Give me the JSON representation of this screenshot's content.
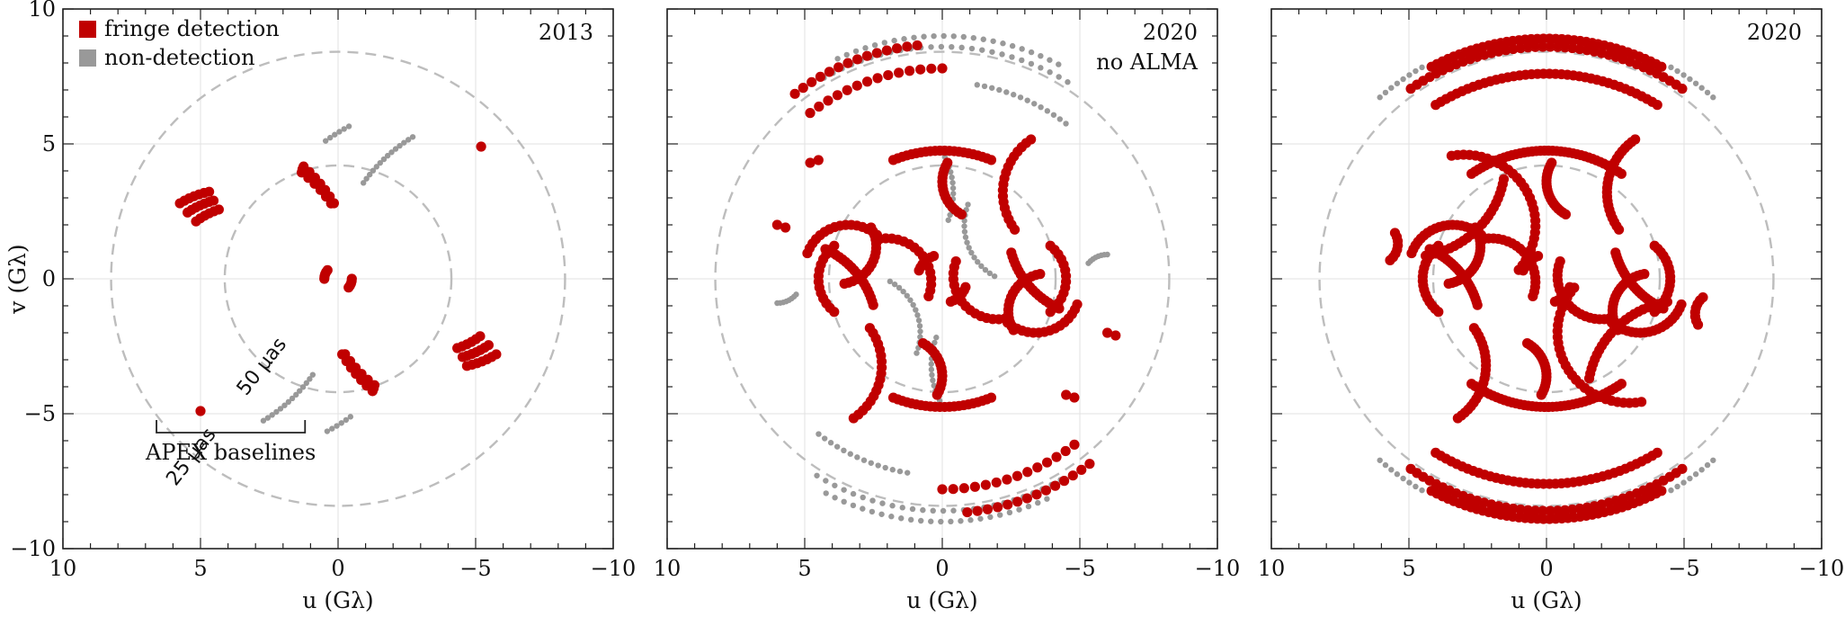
{
  "chart_data": [
    {
      "type": "scatter",
      "panel": "left",
      "year": "2013",
      "subtitle": "",
      "xlabel": "u (Gλ)",
      "ylabel": "v (Gλ)",
      "xlim": [
        10,
        -10
      ],
      "ylim": [
        -10,
        10
      ],
      "xticks": [
        "10",
        "5",
        "0",
        "−5",
        "−10"
      ],
      "yticks": [
        "10",
        "5",
        "0",
        "−5",
        "−10"
      ],
      "grid": true,
      "legend": {
        "position": "top-left",
        "entries": [
          {
            "label": "fringe detection",
            "color": "#c00000"
          },
          {
            "label": "non-detection",
            "color": "#999999"
          }
        ]
      },
      "rings": [
        {
          "radius": 8.25,
          "label": "25 μas"
        },
        {
          "radius": 4.12,
          "label": "50 μas"
        }
      ],
      "annotation": {
        "text": "APEX baselines",
        "u_range": [
          6.6,
          1.2
        ],
        "v": -5.5
      },
      "series": [
        {
          "name": "fringe detection",
          "color": "#c00000",
          "arcs": [
            {
              "cu": 4.0,
              "cv": 0.0,
              "r": 3.3,
              "a0": 58,
              "a1": 78,
              "n": 7
            },
            {
              "cu": 3.75,
              "cv": 0.0,
              "r": 3.0,
              "a0": 55,
              "a1": 75,
              "n": 7
            },
            {
              "cu": 3.5,
              "cv": 0.0,
              "r": 2.7,
              "a0": 52,
              "a1": 72,
              "n": 6
            },
            {
              "cu": -4.0,
              "cv": 0.0,
              "r": 3.3,
              "a0": 238,
              "a1": 258,
              "n": 7
            },
            {
              "cu": -3.75,
              "cv": 0.0,
              "r": 3.0,
              "a0": 235,
              "a1": 255,
              "n": 7
            },
            {
              "cu": -3.5,
              "cv": 0.0,
              "r": 2.7,
              "a0": 232,
              "a1": 252,
              "n": 6
            },
            {
              "cu": 5.0,
              "cv": 0.0,
              "r": 5.6,
              "a0": 132,
              "a1": 150,
              "n": 7
            },
            {
              "cu": 4.7,
              "cv": 0.0,
              "r": 5.3,
              "a0": 130,
              "a1": 148,
              "n": 7
            },
            {
              "cu": 4.4,
              "cv": 0.0,
              "r": 5.0,
              "a0": 128,
              "a1": 146,
              "n": 6
            },
            {
              "cu": -5.0,
              "cv": 0.0,
              "r": 5.6,
              "a0": 312,
              "a1": 330,
              "n": 7
            },
            {
              "cu": -4.7,
              "cv": 0.0,
              "r": 5.3,
              "a0": 310,
              "a1": 328,
              "n": 7
            },
            {
              "cu": -4.4,
              "cv": 0.0,
              "r": 5.0,
              "a0": 308,
              "a1": 326,
              "n": 6
            },
            {
              "cu": 0.0,
              "cv": 0.0,
              "r": 0.5,
              "a0": 0,
              "a1": 40,
              "n": 5
            },
            {
              "cu": 0.0,
              "cv": 0.0,
              "r": 0.5,
              "a0": 180,
              "a1": 220,
              "n": 5
            }
          ],
          "points": [
            [
              5.0,
              -4.9
            ],
            [
              -5.2,
              4.9
            ]
          ]
        },
        {
          "name": "non-detection",
          "color": "#999999",
          "arcs": [
            {
              "cu": 6.0,
              "cv": 0.0,
              "r": 6.2,
              "a0": 215,
              "a1": 238,
              "n": 14
            },
            {
              "cu": -6.0,
              "cv": 0.0,
              "r": 6.2,
              "a0": 35,
              "a1": 58,
              "n": 14
            },
            {
              "cu": 3.4,
              "cv": 0.0,
              "r": 6.4,
              "a0": 233,
              "a1": 242,
              "n": 6
            },
            {
              "cu": -3.4,
              "cv": 0.0,
              "r": 6.4,
              "a0": 53,
              "a1": 62,
              "n": 6
            }
          ],
          "points": []
        }
      ]
    },
    {
      "type": "scatter",
      "panel": "middle",
      "year": "2020",
      "subtitle": "no ALMA",
      "xlabel": "u (Gλ)",
      "ylabel": "",
      "xlim": [
        10,
        -10
      ],
      "ylim": [
        -10,
        10
      ],
      "xticks": [
        "10",
        "5",
        "0",
        "−5",
        "−10"
      ],
      "yticks": [],
      "grid": true,
      "rings": [
        {
          "radius": 8.25,
          "label": ""
        },
        {
          "radius": 4.12,
          "label": ""
        }
      ],
      "series": [
        {
          "name": "fringe detection",
          "color": "#c00000",
          "arcs": [
            {
              "cu": 0.0,
              "cv": 0.0,
              "r": 8.7,
              "a0": 52,
              "a1": 84,
              "n": 14
            },
            {
              "cu": 0.0,
              "cv": 0.0,
              "r": 7.8,
              "a0": 52,
              "a1": 90,
              "n": 14
            },
            {
              "cu": 0.0,
              "cv": 0.0,
              "r": 8.7,
              "a0": 232,
              "a1": 264,
              "n": 14
            },
            {
              "cu": 0.0,
              "cv": 0.0,
              "r": 7.8,
              "a0": 232,
              "a1": 270,
              "n": 14
            },
            {
              "cu": 0.0,
              "cv": 0.0,
              "r": 4.75,
              "a0": 68,
              "a1": 112,
              "n": 22
            },
            {
              "cu": 0.0,
              "cv": 0.0,
              "r": 4.75,
              "a0": 248,
              "a1": 292,
              "n": 22
            },
            {
              "cu": -1.4,
              "cv": 3.6,
              "r": 1.4,
              "a0": -60,
              "a1": 30,
              "n": 16
            },
            {
              "cu": 1.4,
              "cv": -3.6,
              "r": 1.4,
              "a0": 120,
              "a1": 210,
              "n": 16
            },
            {
              "cu": -4.6,
              "cv": 3.2,
              "r": 2.4,
              "a0": -35,
              "a1": 55,
              "n": 18
            },
            {
              "cu": 4.6,
              "cv": -3.2,
              "r": 2.4,
              "a0": 145,
              "a1": 235,
              "n": 18
            },
            {
              "cu": 5.6,
              "cv": -1.8,
              "r": 3.2,
              "a0": 115,
              "a1": 165,
              "n": 20
            },
            {
              "cu": -5.6,
              "cv": 1.8,
              "r": 3.2,
              "a0": 295,
              "a1": 345,
              "n": 20
            },
            {
              "cu": 3.8,
              "cv": 1.2,
              "r": 1.4,
              "a0": 150,
              "a1": 260,
              "n": 18
            },
            {
              "cu": -3.8,
              "cv": -1.2,
              "r": 1.4,
              "a0": 330,
              "a1": 440,
              "n": 18
            },
            {
              "cu": 2.0,
              "cv": -0.1,
              "r": 1.6,
              "a0": 80,
              "a1": 200,
              "n": 16
            },
            {
              "cu": -2.0,
              "cv": 0.1,
              "r": 1.6,
              "a0": 260,
              "a1": 380,
              "n": 16
            },
            {
              "cu": -3.4,
              "cv": -0.4,
              "r": 1.6,
              "a0": 200,
              "a1": 310,
              "n": 16
            },
            {
              "cu": 3.4,
              "cv": 0.4,
              "r": 1.6,
              "a0": 20,
              "a1": 130,
              "n": 16
            },
            {
              "cu": -2.9,
              "cv": 0.0,
              "r": 1.6,
              "a0": 130,
              "a1": 230,
              "n": 14
            },
            {
              "cu": 2.9,
              "cv": 0.0,
              "r": 1.6,
              "a0": 310,
              "a1": 410,
              "n": 14
            },
            {
              "cu": 0.0,
              "cv": 0.0,
              "r": 0.9,
              "a0": 20,
              "a1": 70,
              "n": 7
            },
            {
              "cu": 0.0,
              "cv": 0.0,
              "r": 0.9,
              "a0": 200,
              "a1": 250,
              "n": 7
            }
          ],
          "points": [
            [
              6.0,
              2.0
            ],
            [
              5.7,
              1.9
            ],
            [
              -6.0,
              -2.0
            ],
            [
              -6.3,
              -2.1
            ],
            [
              4.5,
              4.4
            ],
            [
              4.8,
              4.3
            ],
            [
              -4.5,
              -4.3
            ],
            [
              -4.8,
              -4.4
            ]
          ]
        },
        {
          "name": "non-detection",
          "color": "#999999",
          "arcs": [
            {
              "cu": 0.0,
              "cv": 0.0,
              "r": 9.0,
              "a0": 65,
              "a1": 118,
              "n": 24
            },
            {
              "cu": 0.0,
              "cv": 0.0,
              "r": 8.6,
              "a0": 60,
              "a1": 122,
              "n": 26
            },
            {
              "cu": 0.0,
              "cv": 0.0,
              "r": 9.0,
              "a0": 245,
              "a1": 298,
              "n": 24
            },
            {
              "cu": 0.0,
              "cv": 0.0,
              "r": 8.6,
              "a0": 240,
              "a1": 302,
              "n": 26
            },
            {
              "cu": 0.0,
              "cv": 0.0,
              "r": 7.3,
              "a0": 100,
              "a1": 128,
              "n": 14
            },
            {
              "cu": 0.0,
              "cv": 0.0,
              "r": 7.3,
              "a0": 280,
              "a1": 308,
              "n": 14
            },
            {
              "cu": -3.0,
              "cv": 2.0,
              "r": 2.2,
              "a0": -60,
              "a1": 20,
              "n": 16
            },
            {
              "cu": 3.0,
              "cv": -2.0,
              "r": 2.2,
              "a0": 120,
              "a1": 200,
              "n": 16
            },
            {
              "cu": 2.6,
              "cv": 3.2,
              "r": 3.0,
              "a0": 150,
              "a1": 200,
              "n": 14
            },
            {
              "cu": -2.6,
              "cv": -3.2,
              "r": 3.0,
              "a0": 330,
              "a1": 380,
              "n": 14
            },
            {
              "cu": 6.0,
              "cv": 0.0,
              "r": 0.9,
              "a0": 220,
              "a1": 270,
              "n": 8
            },
            {
              "cu": -6.0,
              "cv": 0.0,
              "r": 0.9,
              "a0": 40,
              "a1": 90,
              "n": 8
            }
          ],
          "points": []
        }
      ]
    },
    {
      "type": "scatter",
      "panel": "right",
      "year": "2020",
      "subtitle": "",
      "xlabel": "u (Gλ)",
      "ylabel": "",
      "xlim": [
        10,
        -10
      ],
      "ylim": [
        -10,
        10
      ],
      "xticks": [
        "10",
        "5",
        "0",
        "−5",
        "−10"
      ],
      "yticks": [],
      "grid": true,
      "rings": [
        {
          "radius": 8.25,
          "label": ""
        },
        {
          "radius": 4.12,
          "label": ""
        }
      ],
      "series": [
        {
          "name": "fringe detection",
          "color": "#c00000",
          "arcs": [
            {
              "cu": 0.0,
              "cv": 0.0,
              "r": 8.9,
              "a0": 62,
              "a1": 118,
              "n": 40
            },
            {
              "cu": 0.0,
              "cv": 0.0,
              "r": 8.6,
              "a0": 55,
              "a1": 125,
              "n": 40
            },
            {
              "cu": 0.0,
              "cv": 0.0,
              "r": 7.6,
              "a0": 58,
              "a1": 122,
              "n": 40
            },
            {
              "cu": 0.0,
              "cv": 0.0,
              "r": 8.9,
              "a0": 242,
              "a1": 298,
              "n": 40
            },
            {
              "cu": 0.0,
              "cv": 0.0,
              "r": 8.6,
              "a0": 235,
              "a1": 305,
              "n": 40
            },
            {
              "cu": 0.0,
              "cv": 0.0,
              "r": 7.6,
              "a0": 238,
              "a1": 302,
              "n": 40
            },
            {
              "cu": 0.0,
              "cv": 0.0,
              "r": 4.75,
              "a0": 55,
              "a1": 125,
              "n": 40
            },
            {
              "cu": 0.0,
              "cv": 0.0,
              "r": 4.75,
              "a0": 235,
              "a1": 305,
              "n": 40
            },
            {
              "cu": 3.0,
              "cv": 2.0,
              "r": 2.6,
              "a0": 80,
              "a1": 220,
              "n": 30
            },
            {
              "cu": -3.0,
              "cv": -2.0,
              "r": 2.6,
              "a0": 260,
              "a1": 400,
              "n": 30
            },
            {
              "cu": -1.4,
              "cv": 3.6,
              "r": 1.4,
              "a0": -60,
              "a1": 30,
              "n": 20
            },
            {
              "cu": 1.4,
              "cv": -3.6,
              "r": 1.4,
              "a0": 120,
              "a1": 210,
              "n": 20
            },
            {
              "cu": -4.6,
              "cv": 3.2,
              "r": 2.4,
              "a0": -35,
              "a1": 55,
              "n": 24
            },
            {
              "cu": 4.6,
              "cv": -3.2,
              "r": 2.4,
              "a0": 145,
              "a1": 235,
              "n": 24
            },
            {
              "cu": 5.6,
              "cv": -1.8,
              "r": 3.2,
              "a0": 115,
              "a1": 165,
              "n": 24
            },
            {
              "cu": -5.6,
              "cv": 1.8,
              "r": 3.2,
              "a0": 295,
              "a1": 345,
              "n": 24
            },
            {
              "cu": -5.0,
              "cv": -4.3,
              "r": 3.5,
              "a0": 10,
              "a1": 80,
              "n": 24
            },
            {
              "cu": 5.0,
              "cv": 4.3,
              "r": 3.5,
              "a0": 190,
              "a1": 260,
              "n": 24
            },
            {
              "cu": 3.8,
              "cv": 1.2,
              "r": 1.4,
              "a0": 150,
              "a1": 260,
              "n": 22
            },
            {
              "cu": -3.8,
              "cv": -1.2,
              "r": 1.4,
              "a0": 330,
              "a1": 440,
              "n": 22
            },
            {
              "cu": 2.0,
              "cv": -0.1,
              "r": 1.6,
              "a0": 80,
              "a1": 200,
              "n": 20
            },
            {
              "cu": -2.0,
              "cv": 0.1,
              "r": 1.6,
              "a0": 260,
              "a1": 380,
              "n": 20
            },
            {
              "cu": -3.4,
              "cv": -0.4,
              "r": 1.6,
              "a0": 200,
              "a1": 310,
              "n": 20
            },
            {
              "cu": 3.4,
              "cv": 0.4,
              "r": 1.6,
              "a0": 20,
              "a1": 130,
              "n": 20
            },
            {
              "cu": -2.9,
              "cv": 0.0,
              "r": 1.6,
              "a0": 130,
              "a1": 230,
              "n": 18
            },
            {
              "cu": 2.9,
              "cv": 0.0,
              "r": 1.6,
              "a0": 310,
              "a1": 410,
              "n": 18
            },
            {
              "cu": 0.0,
              "cv": 0.0,
              "r": 0.9,
              "a0": 20,
              "a1": 70,
              "n": 8
            },
            {
              "cu": 0.0,
              "cv": 0.0,
              "r": 0.9,
              "a0": 200,
              "a1": 250,
              "n": 8
            },
            {
              "cu": 6.2,
              "cv": 1.3,
              "r": 0.8,
              "a0": 150,
              "a1": 230,
              "n": 8
            },
            {
              "cu": -6.2,
              "cv": -1.3,
              "r": 0.8,
              "a0": 330,
              "a1": 410,
              "n": 8
            }
          ],
          "points": []
        },
        {
          "name": "non-detection",
          "color": "#999999",
          "arcs": [
            {
              "cu": 0.0,
              "cv": 0.0,
              "r": 9.05,
              "a0": 120,
              "a1": 132,
              "n": 8
            },
            {
              "cu": 0.0,
              "cv": 0.0,
              "r": 9.05,
              "a0": 48,
              "a1": 60,
              "n": 8
            },
            {
              "cu": 0.0,
              "cv": 0.0,
              "r": 9.05,
              "a0": 228,
              "a1": 240,
              "n": 8
            },
            {
              "cu": 0.0,
              "cv": 0.0,
              "r": 9.05,
              "a0": 300,
              "a1": 312,
              "n": 8
            }
          ],
          "points": []
        }
      ]
    }
  ]
}
